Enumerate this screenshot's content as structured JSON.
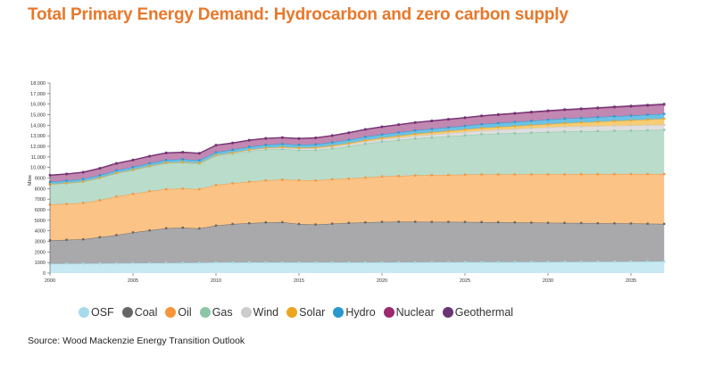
{
  "title": "Total Primary Energy Demand: Hydrocarbon and zero carbon supply",
  "source": "Source: Wood Mackenzie Energy Transition Outlook",
  "chart_data": {
    "type": "area",
    "stacked": true,
    "title": "Total Primary Energy Demand: Hydrocarbon and zero carbon supply",
    "ylabel": "Mtoe",
    "xlabel": "",
    "ylim": [
      0,
      18000
    ],
    "xlim": [
      2000,
      2037
    ],
    "grid": false,
    "legend_position": "bottom",
    "y_ticks": [
      "0",
      "1000",
      "2000",
      "3000",
      "4000",
      "5000",
      "6000",
      "7000",
      "8000",
      "9000",
      "10,000",
      "11,000",
      "12,000",
      "13,000",
      "14,000",
      "15,000",
      "16,000",
      "17,000",
      "18,000"
    ],
    "y_tick_values": [
      0,
      1000,
      2000,
      3000,
      4000,
      5000,
      6000,
      7000,
      8000,
      9000,
      10000,
      11000,
      12000,
      13000,
      14000,
      15000,
      16000,
      17000,
      18000
    ],
    "x_ticks": [
      "2000",
      "2005",
      "2010",
      "2015",
      "2020",
      "2025",
      "2030",
      "2035"
    ],
    "x": [
      2000,
      2001,
      2002,
      2003,
      2004,
      2005,
      2006,
      2007,
      2008,
      2009,
      2010,
      2011,
      2012,
      2013,
      2014,
      2015,
      2016,
      2017,
      2018,
      2019,
      2020,
      2021,
      2022,
      2023,
      2024,
      2025,
      2026,
      2027,
      2028,
      2029,
      2030,
      2031,
      2032,
      2033,
      2034,
      2035,
      2036,
      2037
    ],
    "series": [
      {
        "name": "OSF",
        "color": "#a6dbea",
        "fill": "#c6e9f2",
        "values": [
          880,
          890,
          900,
          910,
          920,
          930,
          940,
          950,
          960,
          970,
          1000,
          1000,
          1000,
          1000,
          1000,
          1000,
          1000,
          1000,
          1000,
          1000,
          1000,
          1010,
          1010,
          1020,
          1020,
          1030,
          1030,
          1040,
          1040,
          1050,
          1050,
          1060,
          1060,
          1070,
          1070,
          1080,
          1090,
          1100
        ]
      },
      {
        "name": "Coal",
        "color": "#666666",
        "fill": "#a9a9ab",
        "values": [
          2220,
          2260,
          2300,
          2490,
          2680,
          2920,
          3110,
          3300,
          3340,
          3260,
          3500,
          3650,
          3720,
          3800,
          3820,
          3650,
          3600,
          3680,
          3750,
          3800,
          3850,
          3850,
          3850,
          3830,
          3830,
          3810,
          3800,
          3780,
          3760,
          3730,
          3710,
          3690,
          3680,
          3650,
          3640,
          3620,
          3590,
          3560
        ]
      },
      {
        "name": "Oil",
        "color": "#f7953a",
        "fill": "#fbc386",
        "values": [
          3400,
          3400,
          3450,
          3500,
          3650,
          3650,
          3700,
          3700,
          3700,
          3720,
          3850,
          3850,
          3930,
          3980,
          4030,
          4150,
          4180,
          4200,
          4200,
          4250,
          4300,
          4340,
          4390,
          4430,
          4450,
          4490,
          4510,
          4530,
          4550,
          4580,
          4600,
          4610,
          4630,
          4650,
          4660,
          4680,
          4700,
          4720
        ]
      },
      {
        "name": "Gas",
        "color": "#8cc6a6",
        "fill": "#badccb",
        "values": [
          1900,
          1950,
          2000,
          2100,
          2200,
          2250,
          2350,
          2450,
          2450,
          2400,
          2750,
          2800,
          2900,
          2920,
          2900,
          2850,
          2870,
          2920,
          3050,
          3200,
          3300,
          3400,
          3500,
          3570,
          3650,
          3720,
          3810,
          3850,
          3900,
          3940,
          3990,
          4040,
          4050,
          4080,
          4110,
          4120,
          4150,
          4180
        ]
      },
      {
        "name": "Wind",
        "color": "#cccccc",
        "fill": "#dedede",
        "values": [
          10,
          15,
          20,
          25,
          30,
          35,
          40,
          45,
          50,
          55,
          60,
          75,
          90,
          105,
          120,
          130,
          145,
          160,
          175,
          190,
          200,
          220,
          240,
          260,
          280,
          300,
          330,
          360,
          390,
          420,
          450,
          455,
          460,
          465,
          470,
          475,
          478,
          480
        ]
      },
      {
        "name": "Solar",
        "color": "#eda51f",
        "fill": "#f6cc74",
        "values": [
          5,
          5,
          5,
          5,
          6,
          7,
          8,
          10,
          12,
          15,
          20,
          30,
          40,
          55,
          70,
          80,
          95,
          110,
          125,
          140,
          150,
          170,
          190,
          210,
          230,
          250,
          260,
          270,
          280,
          290,
          300,
          340,
          380,
          420,
          460,
          500,
          540,
          580
        ]
      },
      {
        "name": "Hydro",
        "color": "#2a98cf",
        "fill": "#6cc1e4",
        "values": [
          230,
          232,
          235,
          238,
          240,
          245,
          250,
          255,
          260,
          262,
          270,
          275,
          280,
          285,
          290,
          290,
          300,
          310,
          320,
          325,
          330,
          332,
          334,
          336,
          338,
          340,
          358,
          376,
          394,
          412,
          430,
          433,
          436,
          439,
          442,
          445,
          448,
          450
        ]
      },
      {
        "name": "Nuclear",
        "color": "#9b2a6e",
        "fill": "#c188b1",
        "values": [
          600,
          610,
          620,
          630,
          640,
          650,
          650,
          650,
          650,
          640,
          640,
          620,
          600,
          590,
          580,
          570,
          590,
          620,
          650,
          680,
          700,
          710,
          720,
          730,
          740,
          750,
          760,
          770,
          780,
          790,
          800,
          810,
          820,
          830,
          840,
          850,
          860,
          870
        ]
      },
      {
        "name": "Geothermal",
        "color": "#6a3575",
        "fill": "#8a5a93",
        "values": [
          40,
          40,
          40,
          40,
          40,
          40,
          40,
          40,
          40,
          40,
          40,
          40,
          40,
          40,
          40,
          40,
          40,
          40,
          40,
          40,
          40,
          42,
          44,
          46,
          48,
          50,
          52,
          54,
          56,
          58,
          60,
          62,
          64,
          66,
          68,
          70,
          72,
          74
        ]
      }
    ]
  }
}
